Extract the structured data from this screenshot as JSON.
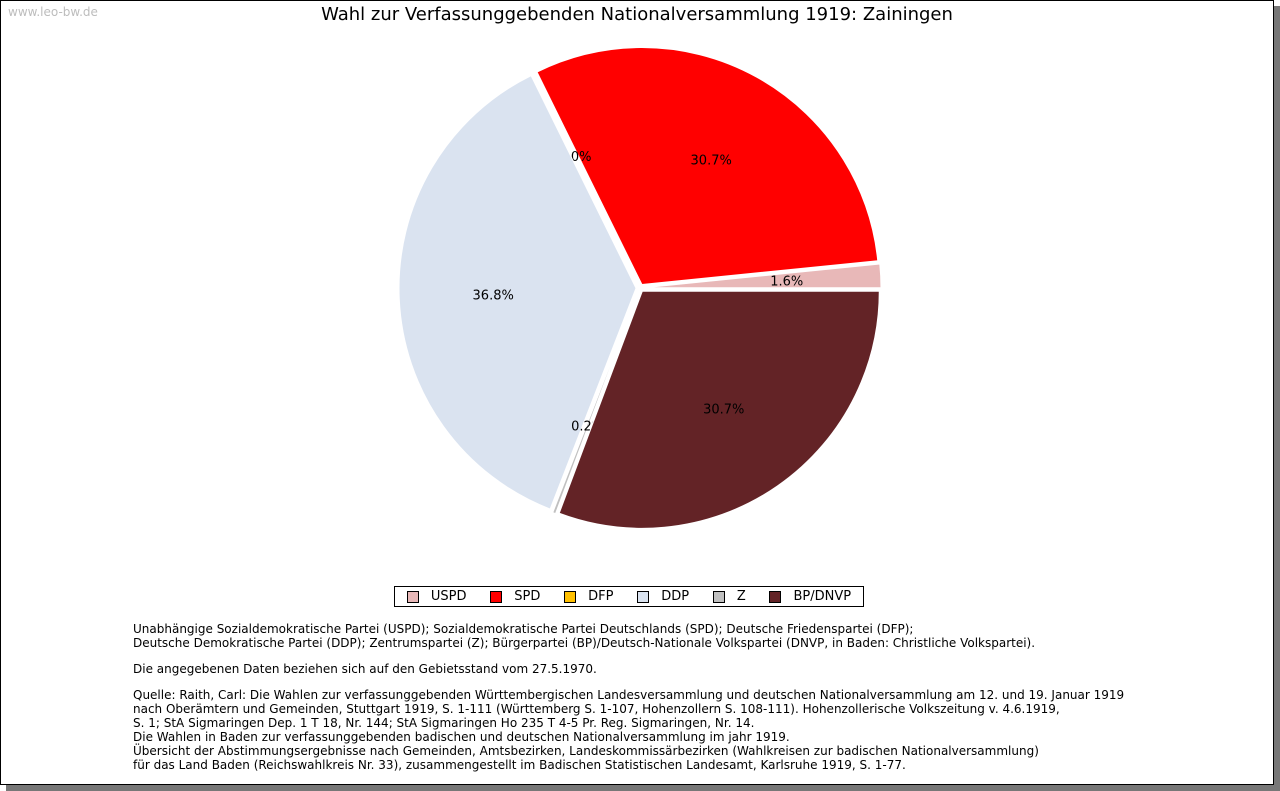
{
  "watermark": "www.leo-bw.de",
  "chart_data": {
    "type": "pie",
    "title": "Wahl zur Verfassunggebenden Nationalversammlung 1919: Zainingen",
    "start_angle_deg": 0,
    "direction": "counterclockwise",
    "slices": [
      {
        "name": "USPD",
        "value": 1.6,
        "label": "1.6%",
        "color": "#e8b8b8"
      },
      {
        "name": "SPD",
        "value": 30.7,
        "label": "30.7%",
        "color": "#ff0000"
      },
      {
        "name": "DFP",
        "value": 0.0,
        "label": "0.0%",
        "color": "#ffc000"
      },
      {
        "name": "DDP",
        "value": 36.8,
        "label": "36.8%",
        "color": "#dae3f0"
      },
      {
        "name": "Z",
        "value": 0.2,
        "label": "0.2%",
        "color": "#c0c0c0"
      },
      {
        "name": "BP/DNVP",
        "value": 30.7,
        "label": "30.7%",
        "color": "#632326"
      }
    ]
  },
  "notes": {
    "parties_line1": "Unabhängige Sozialdemokratische Partei (USPD); Sozialdemokratische Partei Deutschlands (SPD); Deutsche Friedenspartei (DFP);",
    "parties_line2": "Deutsche Demokratische Partei (DDP); Zentrumspartei (Z); Bürgerpartei (BP)/Deutsch-Nationale Volkspartei (DNVP, in Baden: Christliche Volkspartei).",
    "gebietsstand": "Die angegebenen Daten beziehen sich auf den Gebietsstand vom 27.5.1970.",
    "source_line1": "Quelle: Raith, Carl: Die Wahlen zur verfassunggebenden Württembergischen Landesversammlung und deutschen Nationalversammlung am 12. und 19. Januar 1919",
    "source_line2": "nach Oberämtern und Gemeinden, Stuttgart 1919, S. 1-111 (Württemberg S. 1-107, Hohenzollern S. 108-111). Hohenzollerische Volkszeitung v. 4.6.1919,",
    "source_line3": "S. 1; StA Sigmaringen Dep. 1 T 18, Nr. 144; StA Sigmaringen Ho 235 T 4-5 Pr. Reg. Sigmaringen, Nr. 14.",
    "source_line4": "Die Wahlen in Baden zur verfassunggebenden badischen und deutschen Nationalversammlung im jahr 1919.",
    "source_line5": "Übersicht der Abstimmungsergebnisse nach Gemeinden, Amtsbezirken, Landeskommissärbezirken (Wahlkreisen zur badischen Nationalversammlung)",
    "source_line6": "für das Land Baden (Reichswahlkreis Nr. 33), zusammengestellt im Badischen Statistischen Landesamt, Karlsruhe 1919, S. 1-77."
  }
}
